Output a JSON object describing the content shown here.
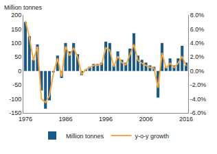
{
  "chart_data": {
    "type": "bar",
    "ylabel": "Million tonnes",
    "x": [
      1976,
      1977,
      1978,
      1979,
      1980,
      1981,
      1982,
      1983,
      1984,
      1985,
      1986,
      1987,
      1988,
      1989,
      1990,
      1991,
      1992,
      1993,
      1994,
      1995,
      1996,
      1997,
      1998,
      1999,
      2000,
      2001,
      2002,
      2003,
      2004,
      2005,
      2006,
      2007,
      2008,
      2009,
      2010,
      2011,
      2012,
      2013,
      2014,
      2015,
      2016
    ],
    "xlim": [
      1975.5,
      2016.5
    ],
    "xticks": [
      1976,
      1986,
      1996,
      2006,
      2016
    ],
    "ylim": [
      -150,
      200
    ],
    "yticks": [
      -150,
      -100,
      -50,
      0,
      50,
      100,
      150,
      200
    ],
    "y2lim": [
      -6,
      8
    ],
    "y2ticks": [
      {
        "value": -6,
        "label": "-6.0%"
      },
      {
        "value": -4,
        "label": "-4.0%"
      },
      {
        "value": -2,
        "label": "-2.0%"
      },
      {
        "value": 0,
        "label": "0.0%"
      },
      {
        "value": 2,
        "label": "2.0%"
      },
      {
        "value": 4,
        "label": "4.0%"
      },
      {
        "value": 6,
        "label": "6.0%"
      },
      {
        "value": 8,
        "label": "8.0%"
      }
    ],
    "grid": false,
    "legend": "bottom",
    "series": [
      {
        "name": "Million tonnes",
        "type": "bar",
        "color": "#1b5a86",
        "values": [
          175,
          125,
          40,
          95,
          -70,
          -135,
          -105,
          -5,
          55,
          -25,
          100,
          70,
          100,
          60,
          -15,
          5,
          15,
          25,
          25,
          30,
          105,
          100,
          20,
          70,
          40,
          30,
          80,
          135,
          55,
          40,
          30,
          20,
          15,
          -95,
          100,
          15,
          45,
          20,
          45,
          90,
          30
        ]
      },
      {
        "name": "y-o-y growth",
        "type": "line",
        "axis": "y2",
        "color": "#f5a742",
        "values": [
          7.2,
          4.8,
          1.5,
          3.5,
          -4.0,
          -4.5,
          -3.5,
          -0.3,
          1.8,
          -0.8,
          3.5,
          2.2,
          3.3,
          2.0,
          -0.5,
          0.2,
          0.5,
          0.8,
          0.8,
          1.0,
          3.3,
          3.0,
          0.6,
          2.1,
          1.2,
          0.9,
          2.3,
          3.8,
          1.5,
          1.1,
          0.8,
          0.5,
          0.4,
          -2.4,
          2.6,
          0.4,
          1.1,
          0.5,
          1.1,
          2.1,
          0.7
        ]
      }
    ]
  }
}
